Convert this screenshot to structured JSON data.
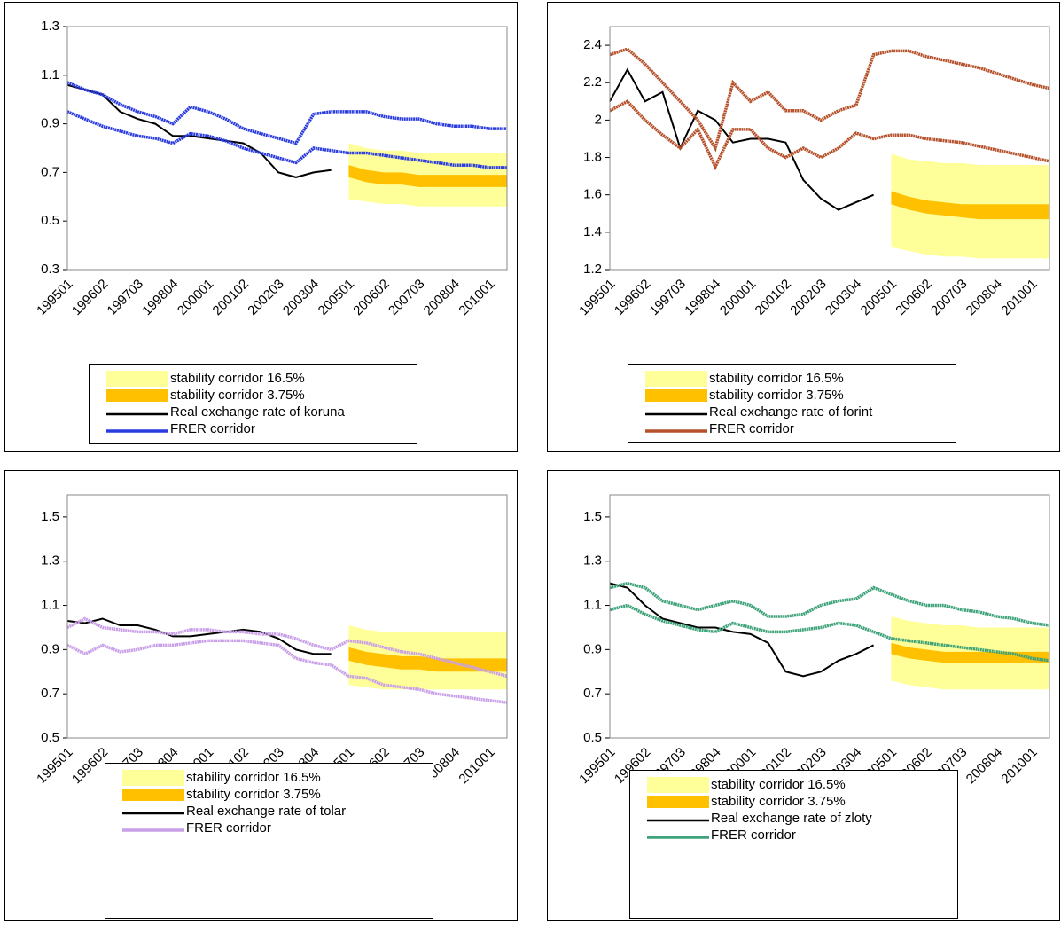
{
  "chart_data": [
    {
      "type": "line",
      "categories": [
        "199501",
        null,
        "199602",
        null,
        "199703",
        null,
        "199804",
        null,
        "200001",
        null,
        "200102",
        null,
        "200203",
        null,
        "200304",
        null,
        "200501",
        null,
        "200602",
        null,
        "200703",
        null,
        "200804",
        null,
        "201001",
        null
      ],
      "ylim": [
        0.3,
        1.3
      ],
      "yticks": [
        0.3,
        0.5,
        0.7,
        0.9,
        1.1,
        1.3
      ],
      "series": [
        {
          "name": "stability corridor 16.5%",
          "color": "#ffff99",
          "type": "band",
          "upper": [
            null,
            null,
            null,
            null,
            null,
            null,
            null,
            null,
            null,
            null,
            null,
            null,
            null,
            null,
            null,
            null,
            0.82,
            0.8,
            0.79,
            0.79,
            0.78,
            0.78,
            0.78,
            0.78,
            0.78,
            0.78
          ],
          "lower": [
            null,
            null,
            null,
            null,
            null,
            null,
            null,
            null,
            null,
            null,
            null,
            null,
            null,
            null,
            null,
            null,
            0.59,
            0.58,
            0.57,
            0.57,
            0.56,
            0.56,
            0.56,
            0.56,
            0.56,
            0.56
          ]
        },
        {
          "name": "stability corridor 3.75%",
          "color": "#ffc000",
          "type": "band",
          "upper": [
            null,
            null,
            null,
            null,
            null,
            null,
            null,
            null,
            null,
            null,
            null,
            null,
            null,
            null,
            null,
            null,
            0.73,
            0.71,
            0.7,
            0.7,
            0.69,
            0.69,
            0.69,
            0.69,
            0.69,
            0.69
          ],
          "lower": [
            null,
            null,
            null,
            null,
            null,
            null,
            null,
            null,
            null,
            null,
            null,
            null,
            null,
            null,
            null,
            null,
            0.68,
            0.66,
            0.65,
            0.65,
            0.64,
            0.64,
            0.64,
            0.64,
            0.64,
            0.64
          ]
        },
        {
          "name": "Real exchange rate of koruna",
          "color": "#000000",
          "values": [
            1.06,
            1.04,
            1.02,
            0.95,
            0.92,
            0.9,
            0.85,
            0.85,
            0.84,
            0.83,
            0.82,
            0.78,
            0.7,
            0.68,
            0.7,
            0.71,
            null,
            null,
            null,
            null,
            null,
            null,
            null,
            null,
            null,
            null
          ]
        },
        {
          "name": "FRER corridor",
          "color": "#2a3be0",
          "type": "corridor",
          "upper": [
            1.07,
            1.04,
            1.02,
            0.98,
            0.95,
            0.93,
            0.9,
            0.97,
            0.95,
            0.92,
            0.88,
            0.86,
            0.84,
            0.82,
            0.94,
            0.95,
            0.95,
            0.95,
            0.93,
            0.92,
            0.92,
            0.9,
            0.89,
            0.89,
            0.88,
            0.88
          ],
          "lower": [
            0.95,
            0.92,
            0.89,
            0.87,
            0.85,
            0.84,
            0.82,
            0.86,
            0.85,
            0.83,
            0.8,
            0.78,
            0.76,
            0.74,
            0.8,
            0.79,
            0.78,
            0.78,
            0.77,
            0.76,
            0.75,
            0.74,
            0.73,
            0.73,
            0.72,
            0.72
          ]
        }
      ]
    },
    {
      "type": "line",
      "categories": [
        "199501",
        null,
        "199602",
        null,
        "199703",
        null,
        "199804",
        null,
        "200001",
        null,
        "200102",
        null,
        "200203",
        null,
        "200304",
        null,
        "200501",
        null,
        "200602",
        null,
        "200703",
        null,
        "200804",
        null,
        "201001",
        null
      ],
      "ylim": [
        1.2,
        2.5
      ],
      "yticks": [
        1.2,
        1.4,
        1.6,
        1.8,
        2,
        2.2,
        2.4
      ],
      "series": [
        {
          "name": "stability corridor 16.5%",
          "color": "#ffff99",
          "type": "band",
          "upper": [
            null,
            null,
            null,
            null,
            null,
            null,
            null,
            null,
            null,
            null,
            null,
            null,
            null,
            null,
            null,
            null,
            1.82,
            1.79,
            1.78,
            1.77,
            1.77,
            1.76,
            1.76,
            1.76,
            1.76,
            1.76
          ],
          "lower": [
            null,
            null,
            null,
            null,
            null,
            null,
            null,
            null,
            null,
            null,
            null,
            null,
            null,
            null,
            null,
            null,
            1.32,
            1.3,
            1.28,
            1.27,
            1.27,
            1.26,
            1.26,
            1.26,
            1.26,
            1.26
          ]
        },
        {
          "name": "stability corridor 3.75%",
          "color": "#ffc000",
          "type": "band",
          "upper": [
            null,
            null,
            null,
            null,
            null,
            null,
            null,
            null,
            null,
            null,
            null,
            null,
            null,
            null,
            null,
            null,
            1.62,
            1.59,
            1.57,
            1.56,
            1.55,
            1.55,
            1.55,
            1.55,
            1.55,
            1.55
          ],
          "lower": [
            null,
            null,
            null,
            null,
            null,
            null,
            null,
            null,
            null,
            null,
            null,
            null,
            null,
            null,
            null,
            null,
            1.55,
            1.52,
            1.5,
            1.49,
            1.48,
            1.47,
            1.47,
            1.47,
            1.47,
            1.47
          ]
        },
        {
          "name": "Real exchange rate of forint",
          "color": "#000000",
          "values": [
            2.1,
            2.27,
            2.1,
            2.15,
            1.85,
            2.05,
            2.0,
            1.88,
            1.9,
            1.9,
            1.88,
            1.68,
            1.58,
            1.52,
            1.56,
            1.6,
            null,
            null,
            null,
            null,
            null,
            null,
            null,
            null,
            null,
            null
          ]
        },
        {
          "name": "FRER corridor",
          "color": "#b5502a",
          "type": "corridor",
          "upper": [
            2.35,
            2.38,
            2.3,
            2.2,
            2.1,
            2.0,
            1.85,
            2.2,
            2.1,
            2.15,
            2.05,
            2.05,
            2.0,
            2.05,
            2.08,
            2.35,
            2.37,
            2.37,
            2.34,
            2.32,
            2.3,
            2.28,
            2.25,
            2.22,
            2.19,
            2.17
          ],
          "lower": [
            2.05,
            2.1,
            2.0,
            1.92,
            1.85,
            1.95,
            1.75,
            1.95,
            1.95,
            1.85,
            1.8,
            1.85,
            1.8,
            1.85,
            1.93,
            1.9,
            1.92,
            1.92,
            1.9,
            1.89,
            1.88,
            1.86,
            1.84,
            1.82,
            1.8,
            1.78
          ]
        }
      ]
    },
    {
      "type": "line",
      "categories": [
        "199501",
        null,
        "199602",
        null,
        "199703",
        null,
        "199804",
        null,
        "200001",
        null,
        "200102",
        null,
        "200203",
        null,
        "200304",
        null,
        "200501",
        null,
        "200602",
        null,
        "200703",
        null,
        "200804",
        null,
        "201001",
        null
      ],
      "ylim": [
        0.5,
        1.6
      ],
      "yticks": [
        0.5,
        0.7,
        0.9,
        1.1,
        1.3,
        1.5
      ],
      "series": [
        {
          "name": "stability corridor 16.5%",
          "color": "#ffff99",
          "type": "band",
          "upper": [
            null,
            null,
            null,
            null,
            null,
            null,
            null,
            null,
            null,
            null,
            null,
            null,
            null,
            null,
            null,
            null,
            1.01,
            0.99,
            0.98,
            0.98,
            0.98,
            0.98,
            0.98,
            0.98,
            0.98,
            0.98
          ],
          "lower": [
            null,
            null,
            null,
            null,
            null,
            null,
            null,
            null,
            null,
            null,
            null,
            null,
            null,
            null,
            null,
            null,
            0.74,
            0.73,
            0.72,
            0.72,
            0.72,
            0.72,
            0.72,
            0.72,
            0.72,
            0.72
          ]
        },
        {
          "name": "stability corridor 3.75%",
          "color": "#ffc000",
          "type": "band",
          "upper": [
            null,
            null,
            null,
            null,
            null,
            null,
            null,
            null,
            null,
            null,
            null,
            null,
            null,
            null,
            null,
            null,
            0.91,
            0.89,
            0.88,
            0.87,
            0.87,
            0.86,
            0.86,
            0.86,
            0.86,
            0.86
          ],
          "lower": [
            null,
            null,
            null,
            null,
            null,
            null,
            null,
            null,
            null,
            null,
            null,
            null,
            null,
            null,
            null,
            null,
            0.85,
            0.83,
            0.82,
            0.81,
            0.81,
            0.8,
            0.8,
            0.8,
            0.8,
            0.8
          ]
        },
        {
          "name": "Real exchange rate of tolar",
          "color": "#000000",
          "values": [
            1.03,
            1.02,
            1.04,
            1.01,
            1.01,
            0.99,
            0.96,
            0.96,
            0.97,
            0.98,
            0.99,
            0.98,
            0.95,
            0.9,
            0.88,
            0.88,
            null,
            null,
            null,
            null,
            null,
            null,
            null,
            null,
            null,
            null
          ]
        },
        {
          "name": "FRER corridor",
          "color": "#c9a0e8",
          "type": "corridor",
          "upper": [
            1.0,
            1.04,
            1.0,
            0.99,
            0.98,
            0.98,
            0.97,
            0.99,
            0.99,
            0.98,
            0.98,
            0.97,
            0.97,
            0.95,
            0.92,
            0.9,
            0.94,
            0.93,
            0.91,
            0.89,
            0.88,
            0.86,
            0.84,
            0.82,
            0.8,
            0.78
          ],
          "lower": [
            0.92,
            0.88,
            0.92,
            0.89,
            0.9,
            0.92,
            0.92,
            0.93,
            0.94,
            0.94,
            0.94,
            0.93,
            0.92,
            0.86,
            0.84,
            0.83,
            0.78,
            0.77,
            0.74,
            0.73,
            0.72,
            0.7,
            0.69,
            0.68,
            0.67,
            0.66
          ]
        }
      ]
    },
    {
      "type": "line",
      "categories": [
        "199501",
        null,
        "199602",
        null,
        "199703",
        null,
        "199804",
        null,
        "200001",
        null,
        "200102",
        null,
        "200203",
        null,
        "200304",
        null,
        "200501",
        null,
        "200602",
        null,
        "200703",
        null,
        "200804",
        null,
        "201001",
        null
      ],
      "ylim": [
        0.5,
        1.6
      ],
      "yticks": [
        0.5,
        0.7,
        0.9,
        1.1,
        1.3,
        1.5
      ],
      "series": [
        {
          "name": "stability corridor 16.5%",
          "color": "#ffff99",
          "type": "band",
          "upper": [
            null,
            null,
            null,
            null,
            null,
            null,
            null,
            null,
            null,
            null,
            null,
            null,
            null,
            null,
            null,
            null,
            1.05,
            1.03,
            1.02,
            1.01,
            1.01,
            1.0,
            1.0,
            1.0,
            1.0,
            1.0
          ],
          "lower": [
            null,
            null,
            null,
            null,
            null,
            null,
            null,
            null,
            null,
            null,
            null,
            null,
            null,
            null,
            null,
            null,
            0.76,
            0.74,
            0.73,
            0.72,
            0.72,
            0.72,
            0.72,
            0.72,
            0.72,
            0.72
          ]
        },
        {
          "name": "stability corridor 3.75%",
          "color": "#ffc000",
          "type": "band",
          "upper": [
            null,
            null,
            null,
            null,
            null,
            null,
            null,
            null,
            null,
            null,
            null,
            null,
            null,
            null,
            null,
            null,
            0.93,
            0.91,
            0.9,
            0.89,
            0.89,
            0.89,
            0.89,
            0.89,
            0.89,
            0.89
          ],
          "lower": [
            null,
            null,
            null,
            null,
            null,
            null,
            null,
            null,
            null,
            null,
            null,
            null,
            null,
            null,
            null,
            null,
            0.88,
            0.86,
            0.85,
            0.84,
            0.84,
            0.84,
            0.84,
            0.84,
            0.84,
            0.84
          ]
        },
        {
          "name": "Real exchange rate of zloty",
          "color": "#000000",
          "values": [
            1.2,
            1.18,
            1.1,
            1.04,
            1.02,
            1.0,
            1.0,
            0.98,
            0.97,
            0.93,
            0.8,
            0.78,
            0.8,
            0.85,
            0.88,
            0.92,
            null,
            null,
            null,
            null,
            null,
            null,
            null,
            null,
            null,
            null
          ]
        },
        {
          "name": "FRER corridor",
          "color": "#3fa37a",
          "type": "corridor",
          "upper": [
            1.18,
            1.2,
            1.18,
            1.12,
            1.1,
            1.08,
            1.1,
            1.12,
            1.1,
            1.05,
            1.05,
            1.06,
            1.1,
            1.12,
            1.13,
            1.18,
            1.15,
            1.12,
            1.1,
            1.1,
            1.08,
            1.07,
            1.05,
            1.04,
            1.02,
            1.01
          ],
          "lower": [
            1.08,
            1.1,
            1.06,
            1.03,
            1.01,
            0.99,
            0.98,
            1.02,
            1.0,
            0.98,
            0.98,
            0.99,
            1.0,
            1.02,
            1.01,
            0.98,
            0.95,
            0.94,
            0.93,
            0.92,
            0.91,
            0.9,
            0.89,
            0.88,
            0.86,
            0.85
          ]
        }
      ]
    }
  ]
}
